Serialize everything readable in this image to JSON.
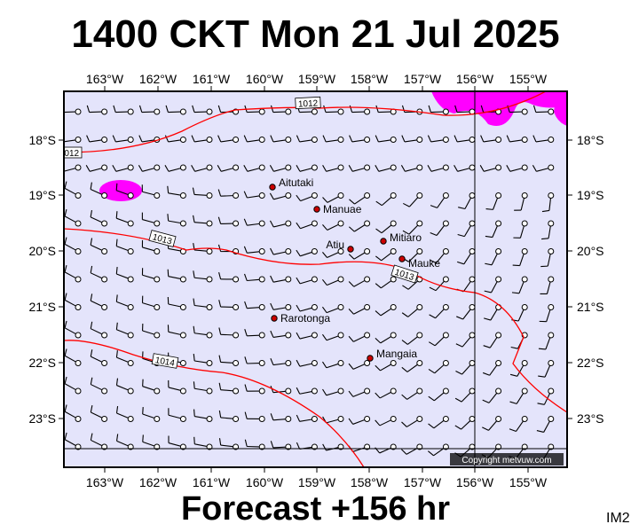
{
  "title": "1400 CKT Mon 21 Jul 2025",
  "forecast": "Forecast +156 hr",
  "map_code": "IM2",
  "copyright": "Copyright metvuw.com",
  "colors": {
    "ocean": "#e4e4fb",
    "isobar": "#ff0000",
    "rain": "#ff00ff",
    "town": "#cc0000"
  },
  "axes": {
    "longitude_labels": [
      "163°W",
      "162°W",
      "161°W",
      "160°W",
      "159°W",
      "158°W",
      "157°W",
      "156°W",
      "155°W"
    ],
    "latitude_labels": [
      "18°S",
      "19°S",
      "20°S",
      "21°S",
      "22°S",
      "23°S"
    ]
  },
  "isobars": [
    {
      "label": "1012"
    },
    {
      "label": "1013"
    },
    {
      "label": "1014"
    }
  ],
  "places": [
    {
      "name": "Aitutaki"
    },
    {
      "name": "Manuae"
    },
    {
      "name": "Atiu"
    },
    {
      "name": "Mitiaro"
    },
    {
      "name": "Mauke"
    },
    {
      "name": "Rarotonga"
    },
    {
      "name": "Mangaia"
    }
  ],
  "wind_field": "wind barbs on regular grid"
}
